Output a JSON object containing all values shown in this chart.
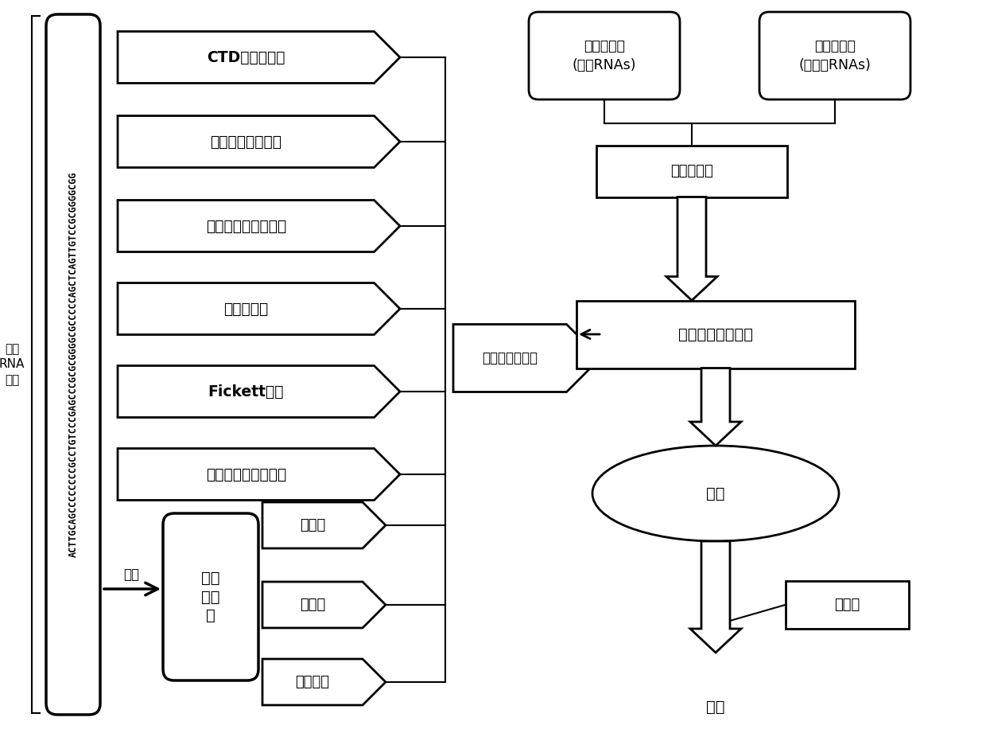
{
  "background_color": "#ffffff",
  "rna_seq_text": "ACTTGCAGCCCCCCCCGCCTGTCCCGAGCCCGCGCGGGGCGCCCCCAGCTCAGTTGTCCGCGGGGCGG",
  "rna_label_line1": "一条",
  "rna_label_line2": "RNA",
  "rna_label_line3": "序列",
  "features": [
    "CTD编码的特征",
    "开放阅读框的长度",
    "开放阅读框的覆盖率",
    "六聚体打分",
    "Fickett打分",
    "开放阅读框的完整性"
  ],
  "features_bold": [
    true,
    false,
    false,
    false,
    true,
    false
  ],
  "protein_features": [
    "等电点",
    "亲水性",
    "不稳定性"
  ],
  "protein_box_label": "蛋白\n白质\n序列",
  "translate_label": "翻译",
  "relevance_label": "相关度和冗余度",
  "svm_label": "支持向量机分类器",
  "model_label": "模型",
  "training_label": "训练数据集",
  "test_label": "测试集",
  "analysis_label": "分析",
  "pos_dataset_label": "阳性数据集\n(编码RNAs)",
  "neg_dataset_label": "阴性数据集\n(非编码RNAs)"
}
